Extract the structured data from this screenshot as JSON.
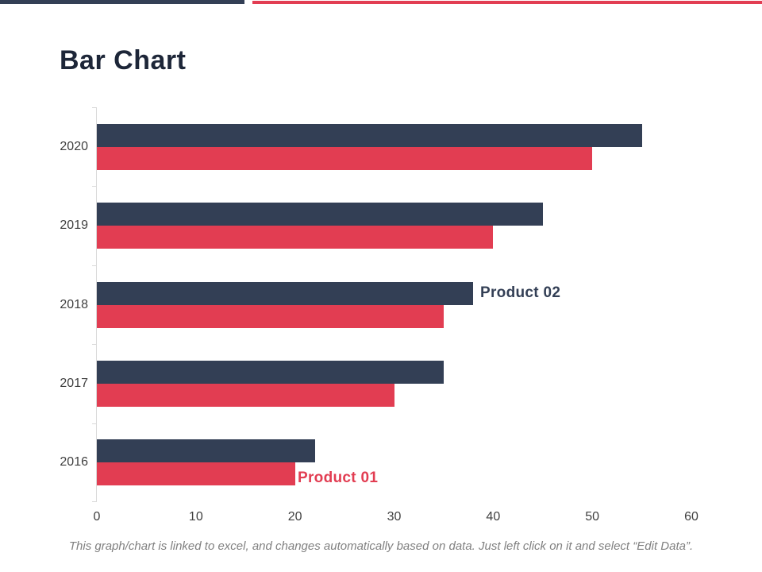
{
  "slide": {
    "title": "Bar Chart",
    "footer": "This graph/chart is linked to excel, and changes automatically based on data. Just left click on it and select “Edit Data”.",
    "accent_navy": "#333f55",
    "accent_red": "#e23d52"
  },
  "chart_data": {
    "type": "bar",
    "orientation": "horizontal",
    "title": "Bar Chart",
    "categories": [
      "2020",
      "2019",
      "2018",
      "2017",
      "2016"
    ],
    "series": [
      {
        "name": "Product 02",
        "color": "#333f55",
        "values": [
          55,
          45,
          38,
          35,
          22
        ]
      },
      {
        "name": "Product 01",
        "color": "#e23d52",
        "values": [
          50,
          40,
          35,
          30,
          20
        ]
      }
    ],
    "xlim": [
      0,
      60
    ],
    "x_ticks": [
      "0",
      "10",
      "20",
      "30",
      "40",
      "50",
      "60"
    ],
    "grid": false,
    "legend": "inline-series-labels",
    "axis_line_color": "#d9d9d9"
  }
}
